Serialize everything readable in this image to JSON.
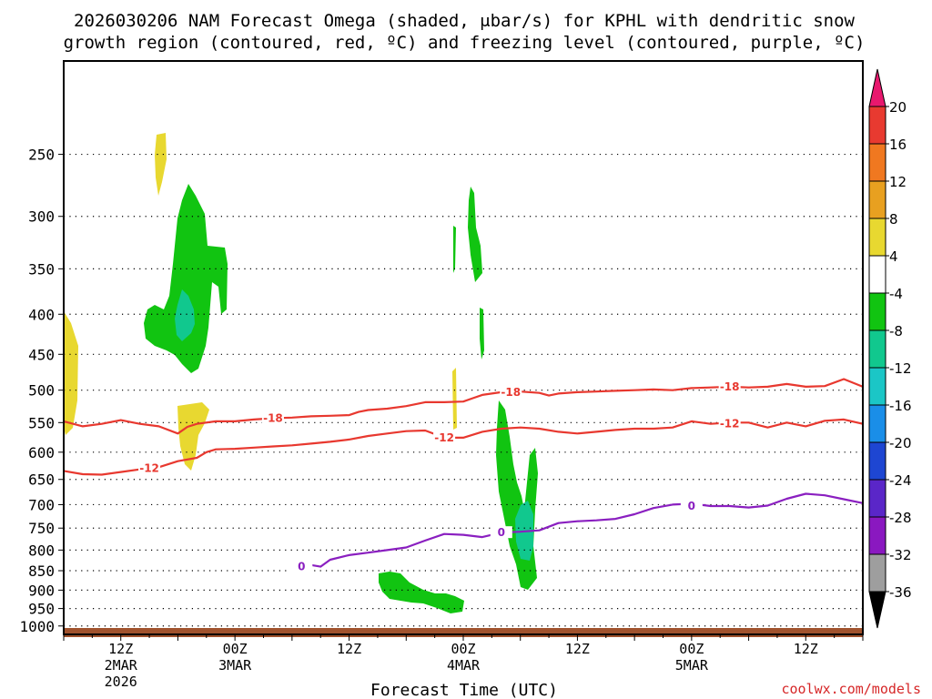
{
  "chart_data": {
    "type": "time-height cross section",
    "title_line1": "2026030206 NAM Forecast Omega (shaded, μbar/s) for KPHL with dendritic snow",
    "title_line2": "growth region (contoured, red, ºC) and freezing level (contoured, purple, ºC)",
    "xlabel": "Forecast Time (UTC)",
    "credit": "coolwx.com/models",
    "x_range_hours": [
      0,
      84
    ],
    "y_levels": [
      250,
      300,
      350,
      400,
      450,
      500,
      550,
      600,
      650,
      700,
      750,
      800,
      850,
      900,
      950,
      1000
    ],
    "y_range_mb": [
      190,
      1025
    ],
    "x_ticks": [
      {
        "h": 6,
        "label1": "12Z",
        "label2": "2MAR",
        "label3": "2026"
      },
      {
        "h": 18,
        "label1": "00Z",
        "label2": "3MAR"
      },
      {
        "h": 30,
        "label1": "12Z"
      },
      {
        "h": 42,
        "label1": "00Z",
        "label2": "4MAR"
      },
      {
        "h": 54,
        "label1": "12Z"
      },
      {
        "h": 66,
        "label1": "00Z",
        "label2": "5MAR"
      },
      {
        "h": 78,
        "label1": "12Z"
      }
    ],
    "colorbar": {
      "labels": [
        "20",
        "16",
        "12",
        "8",
        "4",
        "-4",
        "-8",
        "-12",
        "-16",
        "-20",
        "-24",
        "-28",
        "-32",
        "-36"
      ],
      "colors": [
        "#e8186e",
        "#e83a30",
        "#f07820",
        "#e8a020",
        "#e8d830",
        "#ffffff",
        "#11c411",
        "#11c88e",
        "#1bc6c6",
        "#1a8ee8",
        "#1e46d2",
        "#5a26c8",
        "#8a18c0",
        "#9e9e9e",
        "#000000"
      ]
    },
    "contours": {
      "minus18": {
        "label": "-18",
        "color": "#e8382f",
        "points": [
          [
            0,
            548
          ],
          [
            2,
            556
          ],
          [
            4,
            552
          ],
          [
            6,
            546
          ],
          [
            8,
            552
          ],
          [
            10,
            556
          ],
          [
            12,
            568
          ],
          [
            13,
            557
          ],
          [
            14,
            552
          ],
          [
            16,
            548
          ],
          [
            18,
            548
          ],
          [
            20,
            545
          ],
          [
            22,
            543
          ],
          [
            24,
            542
          ],
          [
            26,
            540
          ],
          [
            28,
            539
          ],
          [
            30,
            538
          ],
          [
            31,
            533
          ],
          [
            32,
            530
          ],
          [
            34,
            528
          ],
          [
            36,
            524
          ],
          [
            38,
            518
          ],
          [
            40,
            518
          ],
          [
            42,
            517
          ],
          [
            43,
            512
          ],
          [
            44,
            507
          ],
          [
            46,
            503
          ],
          [
            48,
            502
          ],
          [
            50,
            504
          ],
          [
            51,
            508
          ],
          [
            52,
            505
          ],
          [
            54,
            503
          ],
          [
            56,
            502
          ],
          [
            58,
            501
          ],
          [
            60,
            500
          ],
          [
            62,
            499
          ],
          [
            64,
            500
          ],
          [
            66,
            497
          ],
          [
            68,
            496
          ],
          [
            70,
            495
          ],
          [
            72,
            496
          ],
          [
            74,
            495
          ],
          [
            76,
            491
          ],
          [
            78,
            495
          ],
          [
            80,
            494
          ],
          [
            82,
            484
          ],
          [
            84,
            495
          ]
        ],
        "labels_at": [
          [
            22,
            543
          ],
          [
            47,
            503
          ],
          [
            70,
            495
          ]
        ]
      },
      "minus12": {
        "label": "-12",
        "color": "#e8382f",
        "points": [
          [
            0,
            634
          ],
          [
            2,
            640
          ],
          [
            4,
            641
          ],
          [
            6,
            636
          ],
          [
            8,
            631
          ],
          [
            10,
            627
          ],
          [
            12,
            616
          ],
          [
            14,
            610
          ],
          [
            15,
            600
          ],
          [
            16,
            595
          ],
          [
            18,
            594
          ],
          [
            20,
            592
          ],
          [
            22,
            590
          ],
          [
            24,
            588
          ],
          [
            26,
            585
          ],
          [
            28,
            582
          ],
          [
            30,
            578
          ],
          [
            32,
            572
          ],
          [
            34,
            568
          ],
          [
            36,
            564
          ],
          [
            38,
            563
          ],
          [
            40,
            575
          ],
          [
            42,
            575
          ],
          [
            44,
            565
          ],
          [
            46,
            560
          ],
          [
            48,
            558
          ],
          [
            50,
            560
          ],
          [
            52,
            565
          ],
          [
            54,
            568
          ],
          [
            56,
            565
          ],
          [
            58,
            562
          ],
          [
            60,
            560
          ],
          [
            62,
            560
          ],
          [
            64,
            558
          ],
          [
            66,
            548
          ],
          [
            68,
            552
          ],
          [
            70,
            550
          ],
          [
            72,
            550
          ],
          [
            74,
            558
          ],
          [
            76,
            550
          ],
          [
            78,
            556
          ],
          [
            80,
            547
          ],
          [
            82,
            545
          ],
          [
            84,
            552
          ]
        ],
        "labels_at": [
          [
            9,
            629
          ],
          [
            40,
            575
          ],
          [
            70,
            552
          ]
        ]
      },
      "zero": {
        "label": "0",
        "color": "#8a1fc0",
        "points": [
          [
            24,
            841
          ],
          [
            26,
            836
          ],
          [
            27,
            840
          ],
          [
            28,
            823
          ],
          [
            30,
            812
          ],
          [
            32,
            806
          ],
          [
            34,
            800
          ],
          [
            36,
            794
          ],
          [
            38,
            778
          ],
          [
            40,
            763
          ],
          [
            42,
            765
          ],
          [
            44,
            770
          ],
          [
            46,
            760
          ],
          [
            48,
            758
          ],
          [
            50,
            755
          ],
          [
            52,
            739
          ],
          [
            54,
            735
          ],
          [
            56,
            733
          ],
          [
            58,
            730
          ],
          [
            60,
            720
          ],
          [
            62,
            707
          ],
          [
            64,
            700
          ],
          [
            66,
            698
          ],
          [
            68,
            703
          ],
          [
            70,
            703
          ],
          [
            72,
            706
          ],
          [
            74,
            702
          ],
          [
            76,
            688
          ],
          [
            78,
            678
          ],
          [
            80,
            681
          ],
          [
            82,
            689
          ],
          [
            84,
            697
          ]
        ],
        "labels_at": [
          [
            25,
            840
          ],
          [
            46,
            760
          ],
          [
            66,
            703
          ]
        ]
      }
    }
  }
}
